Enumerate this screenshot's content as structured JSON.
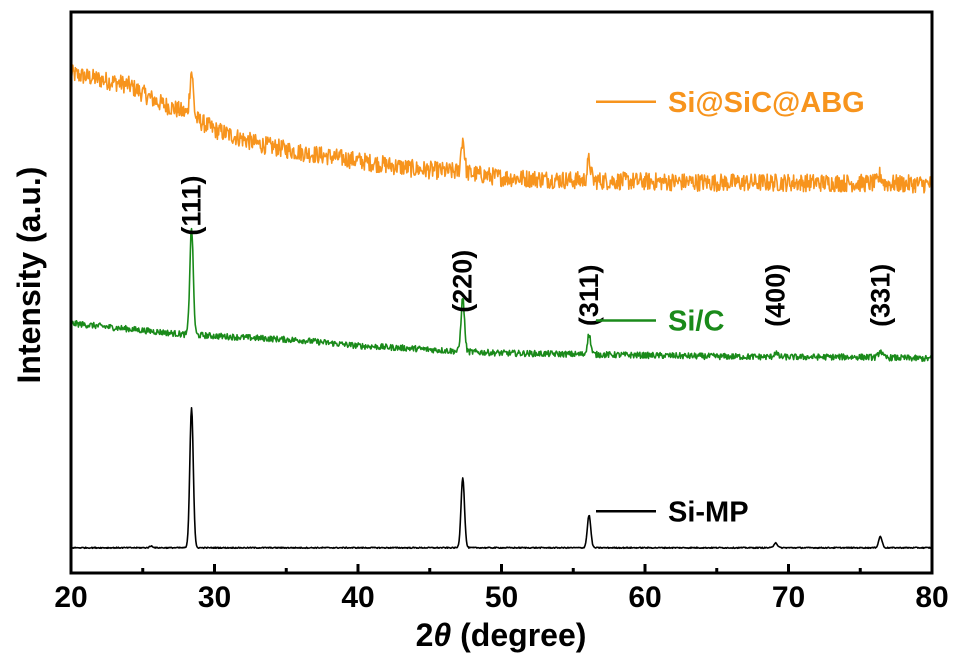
{
  "chart_data": {
    "type": "line",
    "xlabel_prefix": "2",
    "xlabel_symbol": "θ",
    "xlabel_suffix": " (degree)",
    "ylabel": "Intensity (a.u.)",
    "xlim": [
      20,
      80
    ],
    "ylim": [
      0,
      100
    ],
    "x_ticks": [
      20,
      30,
      40,
      50,
      60,
      70,
      80
    ],
    "x_tick_labels": [
      "20",
      "30",
      "40",
      "50",
      "60",
      "70",
      "80"
    ],
    "y_ticks_shown": false,
    "grid": false,
    "peak_labels": [
      {
        "x": 28.4,
        "y": 65.5,
        "text": "(111)"
      },
      {
        "x": 47.3,
        "y": 52.0,
        "text": "(220)"
      },
      {
        "x": 56.1,
        "y": 49.5,
        "text": "(311)"
      },
      {
        "x": 69.1,
        "y": 49.5,
        "text": "(400)"
      },
      {
        "x": 76.4,
        "y": 49.5,
        "text": "(331)"
      }
    ],
    "series": [
      {
        "name": "Si@SiC@ABG",
        "color": "#f7941d",
        "baseline": [
          [
            20,
            89
          ],
          [
            22,
            88
          ],
          [
            24,
            87
          ],
          [
            26,
            84
          ],
          [
            28,
            82
          ],
          [
            30,
            79
          ],
          [
            33,
            76.5
          ],
          [
            36,
            75
          ],
          [
            40,
            73.5
          ],
          [
            44,
            72
          ],
          [
            47,
            71.5
          ],
          [
            50,
            70.5
          ],
          [
            55,
            70
          ],
          [
            60,
            69.8
          ],
          [
            65,
            69.6
          ],
          [
            70,
            69.6
          ],
          [
            75,
            69.5
          ],
          [
            80,
            69.3
          ]
        ],
        "peaks": [
          {
            "x": 28.4,
            "height": 8
          },
          {
            "x": 47.3,
            "height": 6
          },
          {
            "x": 56.1,
            "height": 3.5
          },
          {
            "x": 76.4,
            "height": 1.5
          }
        ],
        "noise": 1.6,
        "legend_y": 84
      },
      {
        "name": "Si/C",
        "color": "#1a8a1a",
        "baseline": [
          [
            20,
            44.5
          ],
          [
            24,
            43.5
          ],
          [
            28,
            42.5
          ],
          [
            32,
            42
          ],
          [
            36,
            41.5
          ],
          [
            40,
            40.5
          ],
          [
            44,
            40
          ],
          [
            47,
            39.5
          ],
          [
            50,
            39.2
          ],
          [
            55,
            39
          ],
          [
            60,
            38.8
          ],
          [
            65,
            38.6
          ],
          [
            70,
            38.5
          ],
          [
            75,
            38.5
          ],
          [
            80,
            38.2
          ]
        ],
        "peaks": [
          {
            "x": 28.4,
            "height": 19
          },
          {
            "x": 47.3,
            "height": 9.5
          },
          {
            "x": 56.1,
            "height": 3.5
          },
          {
            "x": 69.1,
            "height": 0.8
          },
          {
            "x": 76.4,
            "height": 1.2
          }
        ],
        "noise": 0.55,
        "legend_y": 45
      },
      {
        "name": "Si-MP",
        "color": "#000000",
        "baseline": [
          [
            20,
            4.5
          ],
          [
            80,
            4.5
          ]
        ],
        "peaks": [
          {
            "x": 25.6,
            "height": 0.3
          },
          {
            "x": 28.4,
            "height": 25
          },
          {
            "x": 47.3,
            "height": 12.5
          },
          {
            "x": 56.1,
            "height": 5.8
          },
          {
            "x": 69.1,
            "height": 0.9
          },
          {
            "x": 76.4,
            "height": 2.0
          }
        ],
        "noise": 0.1,
        "legend_y": 11
      }
    ]
  }
}
